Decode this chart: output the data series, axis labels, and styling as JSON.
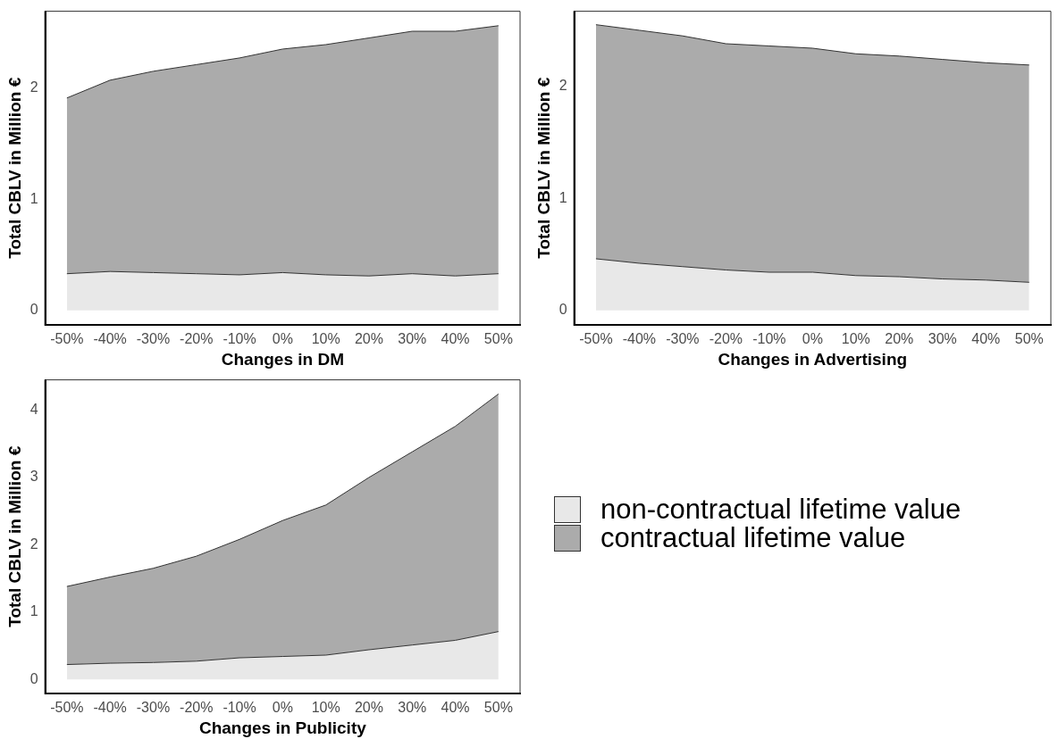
{
  "chart_data": [
    {
      "type": "area",
      "stacked": true,
      "legend": "bottom right",
      "xlabel": "Changes in DM",
      "ylabel": "Total CBLV in Million €",
      "categories": [
        "-50%",
        "-40%",
        "-30%",
        "-20%",
        "-10%",
        "0%",
        "10%",
        "20%",
        "30%",
        "40%",
        "50%"
      ],
      "ylim": [
        -0.13,
        2.69
      ],
      "yticks": [
        0,
        1,
        2
      ],
      "series": [
        {
          "name": "non-contractual lifetime value",
          "color": "#e8e8e8",
          "values": [
            0.33,
            0.35,
            0.34,
            0.33,
            0.32,
            0.34,
            0.32,
            0.31,
            0.33,
            0.31,
            0.33
          ]
        },
        {
          "name": "contractual lifetime value",
          "color": "#ababab",
          "values": [
            1.58,
            1.72,
            1.81,
            1.88,
            1.95,
            2.01,
            2.07,
            2.14,
            2.18,
            2.2,
            2.23
          ]
        }
      ]
    },
    {
      "type": "area",
      "stacked": true,
      "xlabel": "Changes in Advertising",
      "ylabel": "Total CBLV in Million €",
      "categories": [
        "-50%",
        "-40%",
        "-30%",
        "-20%",
        "-10%",
        "0%",
        "10%",
        "20%",
        "30%",
        "40%",
        "50%"
      ],
      "ylim": [
        -0.13,
        2.67
      ],
      "yticks": [
        0,
        1,
        2
      ],
      "series": [
        {
          "color": "#e8e8e8",
          "values": [
            0.46,
            0.42,
            0.39,
            0.36,
            0.34,
            0.34,
            0.31,
            0.3,
            0.28,
            0.27,
            0.25
          ]
        },
        {
          "color": "#ababab",
          "values": [
            2.09,
            2.08,
            2.06,
            2.02,
            2.02,
            2.0,
            1.98,
            1.97,
            1.96,
            1.94,
            1.94
          ]
        }
      ]
    },
    {
      "type": "area",
      "stacked": true,
      "xlabel": "Changes in Publicity",
      "ylabel": "Total CBLV in Million €",
      "categories": [
        "-50%",
        "-40%",
        "-30%",
        "-20%",
        "-10%",
        "0%",
        "10%",
        "20%",
        "30%",
        "40%",
        "50%"
      ],
      "ylim": [
        -0.21,
        4.45
      ],
      "yticks": [
        0,
        1,
        2,
        3,
        4
      ],
      "series": [
        {
          "color": "#e8e8e8",
          "values": [
            0.22,
            0.24,
            0.25,
            0.27,
            0.32,
            0.34,
            0.36,
            0.44,
            0.51,
            0.58,
            0.71
          ]
        },
        {
          "color": "#ababab",
          "values": [
            1.16,
            1.28,
            1.4,
            1.56,
            1.76,
            2.02,
            2.23,
            2.56,
            2.87,
            3.18,
            3.53
          ]
        }
      ]
    }
  ]
}
